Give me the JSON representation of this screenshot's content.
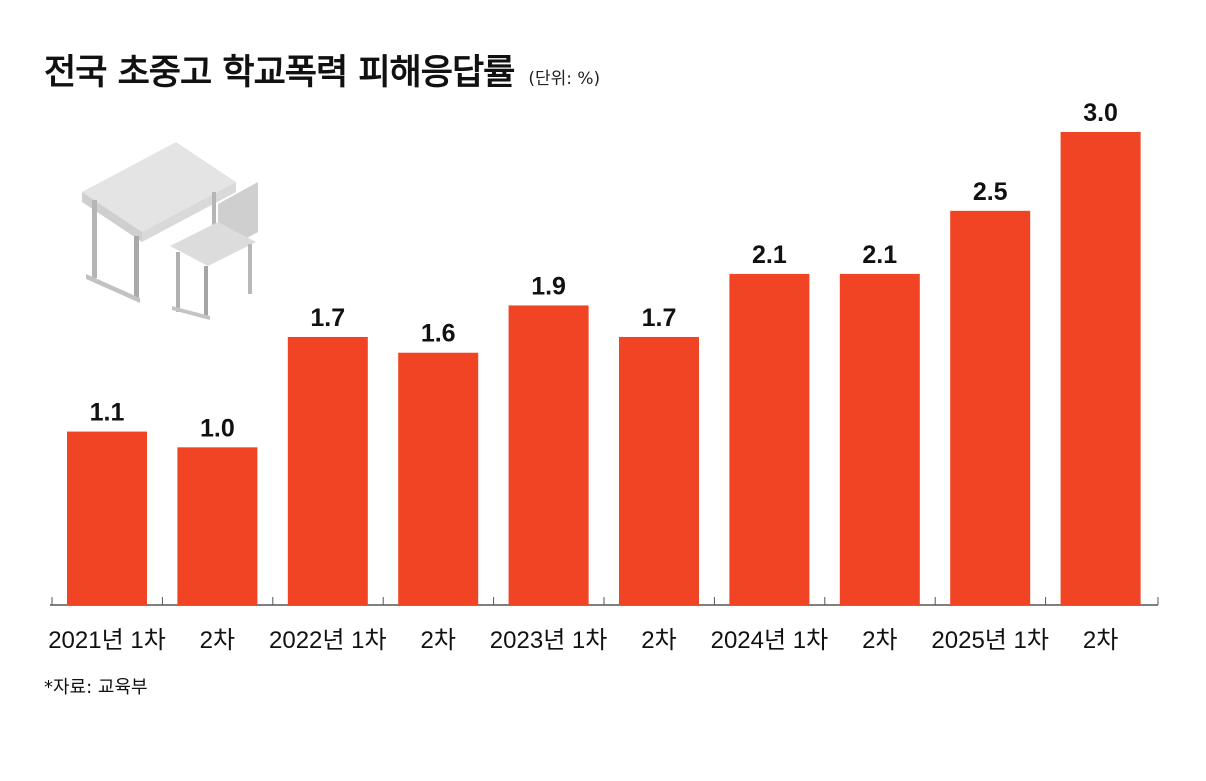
{
  "title": "전국 초중고 학교폭력 피해응답률",
  "unit": "(단위: %)",
  "source": "*자료: 교육부",
  "illustration": "school-desk-and-chair",
  "colors": {
    "bar": "#f04424",
    "axis": "#555555"
  },
  "chart_data": {
    "type": "bar",
    "title": "전국 초중고 학교폭력 피해응답률",
    "unit": "%",
    "categories": [
      "2021년 1차",
      "2차",
      "2022년 1차",
      "2차",
      "2023년 1차",
      "2차",
      "2024년 1차",
      "2차",
      "2025년 1차",
      "2차"
    ],
    "values": [
      1.1,
      1.0,
      1.7,
      1.6,
      1.9,
      1.7,
      2.1,
      2.1,
      2.5,
      3.0
    ],
    "value_labels": [
      "1.1",
      "1.0",
      "1.7",
      "1.6",
      "1.9",
      "1.7",
      "2.1",
      "2.1",
      "2.5",
      "3.0"
    ],
    "ylim": [
      0,
      3.0
    ],
    "grid": false,
    "legend": "none"
  }
}
